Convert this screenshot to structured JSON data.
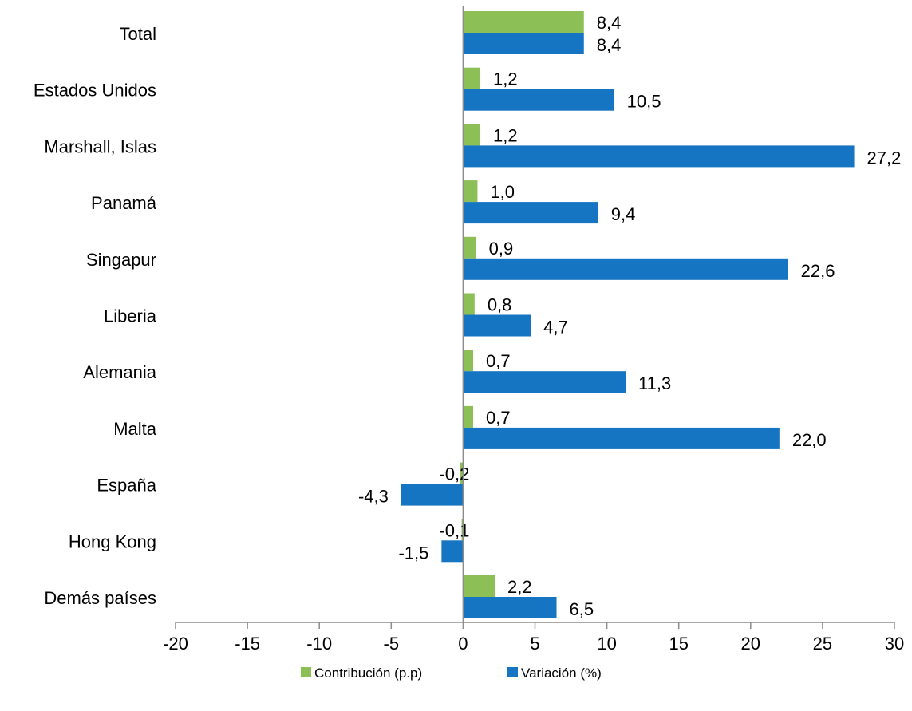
{
  "chart_data": {
    "type": "bar",
    "orientation": "horizontal",
    "categories": [
      "Total",
      "Estados Unidos",
      "Marshall, Islas",
      "Panamá",
      "Singapur",
      "Liberia",
      "Alemania",
      "Malta",
      "España",
      "Hong Kong",
      "Demás países"
    ],
    "series": [
      {
        "name": "Contribución (p.p)",
        "color": "#8CBF55",
        "values": [
          8.4,
          1.2,
          1.2,
          1.0,
          0.9,
          0.8,
          0.7,
          0.7,
          -0.2,
          -0.1,
          2.2
        ],
        "labels": [
          "8,4",
          "1,2",
          "1,2",
          "1,0",
          "0,9",
          "0,8",
          "0,7",
          "0,7",
          "-0,2",
          "-0,1",
          "2,2"
        ]
      },
      {
        "name": "Variación (%)",
        "color": "#1675C2",
        "values": [
          8.4,
          10.5,
          27.2,
          9.4,
          22.6,
          4.7,
          11.3,
          22.0,
          -4.3,
          -1.5,
          6.5
        ],
        "labels": [
          "8,4",
          "10,5",
          "27,2",
          "9,4",
          "22,6",
          "4,7",
          "11,3",
          "22,0",
          "-4,3",
          "-1,5",
          "6,5"
        ]
      }
    ],
    "xlim": [
      -20,
      30
    ],
    "xticks": [
      -20,
      -15,
      -10,
      -5,
      0,
      5,
      10,
      15,
      20,
      25,
      30
    ],
    "xtick_labels": [
      "-20",
      "-15",
      "-10",
      "-5",
      "0",
      "5",
      "10",
      "15",
      "20",
      "25",
      "30"
    ],
    "title": "",
    "xlabel": "",
    "ylabel": "",
    "grid": false,
    "legend_position": "bottom"
  }
}
